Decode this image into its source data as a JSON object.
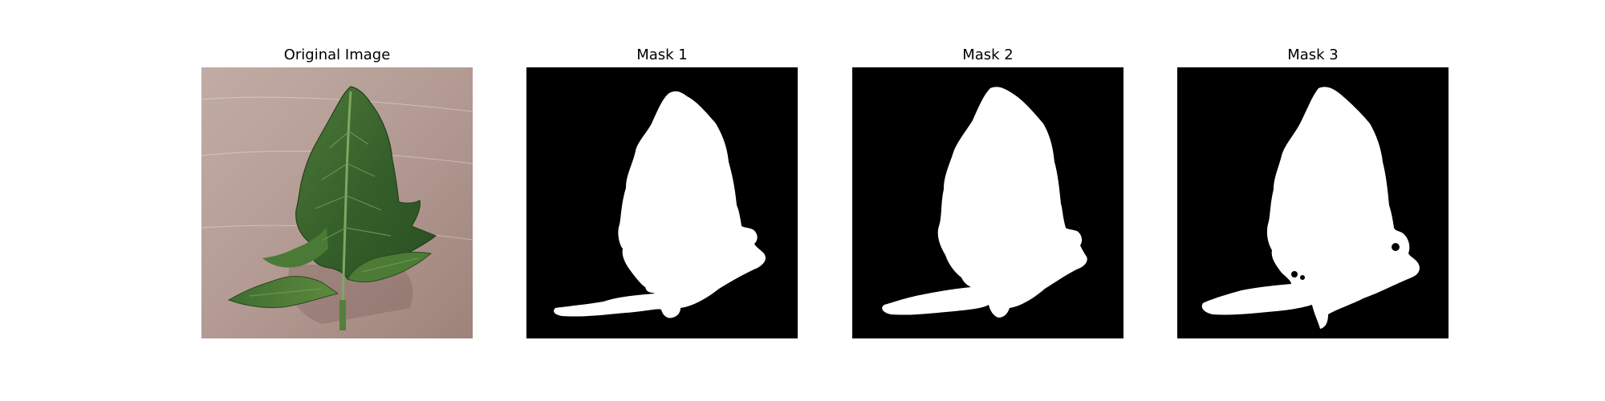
{
  "figure": {
    "panels": [
      {
        "title": "Original Image",
        "kind": "photo"
      },
      {
        "title": "Mask 1",
        "kind": "mask"
      },
      {
        "title": "Mask 2",
        "kind": "mask"
      },
      {
        "title": "Mask 3",
        "kind": "mask"
      }
    ]
  },
  "colors": {
    "background": "#ffffff",
    "mask_background": "#000000",
    "mask_foreground": "#ffffff",
    "leaf_green": "#3e6b2e",
    "paper_tan": "#b79f96"
  }
}
